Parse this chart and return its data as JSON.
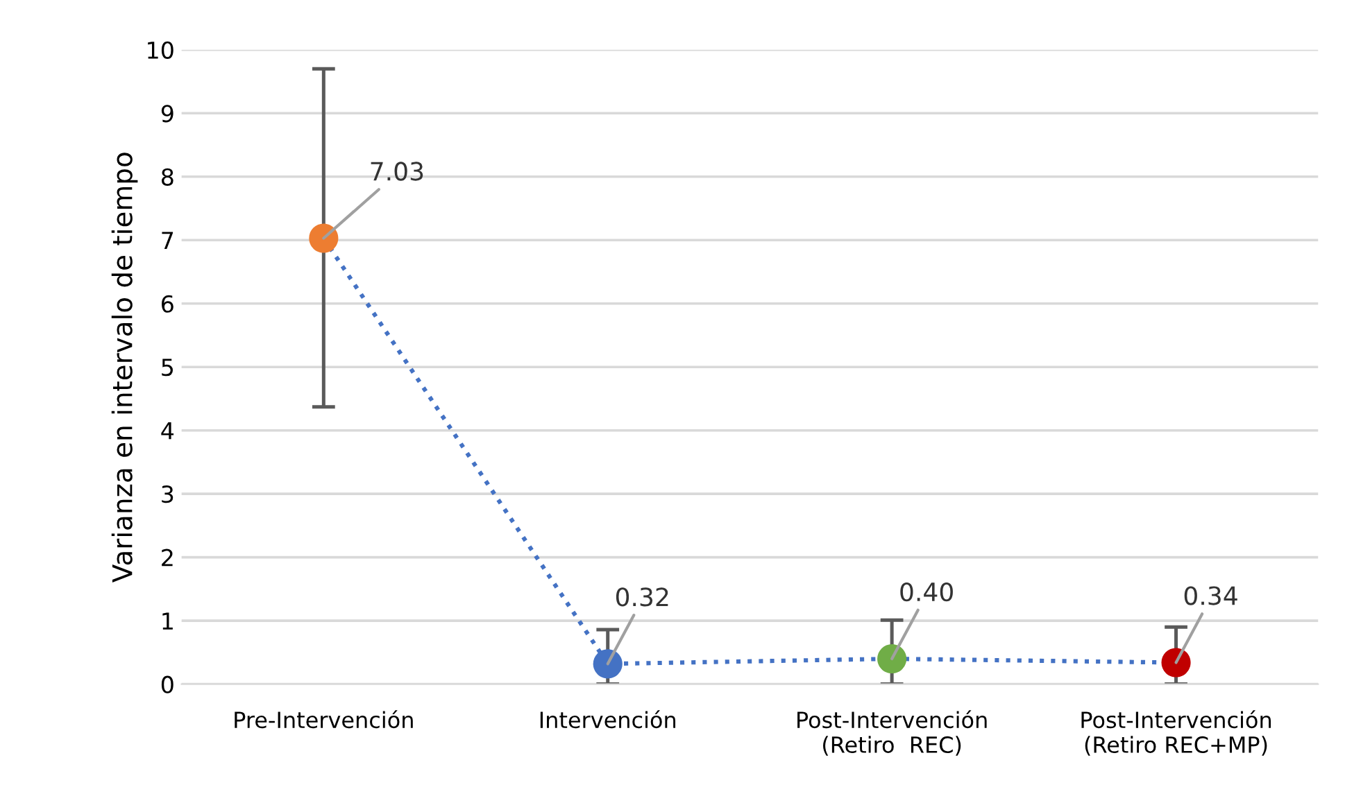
{
  "chart_data": {
    "type": "line",
    "ylabel": "Varianza en intervalo de tiempo",
    "categories": [
      "Pre-Intervención",
      "Intervención",
      "Post-Intervención\n(Retiro  REC)",
      "Post-Intervención\n(Retiro REC+MP)"
    ],
    "values": [
      7.03,
      0.32,
      0.4,
      0.34
    ],
    "color": "#4472c4",
    "colors": [
      "#ed7d31",
      "#4472c4",
      "#70ad47",
      "#c00000"
    ],
    "errors": [
      [
        4.37,
        9.7
      ],
      [
        0,
        0.86
      ],
      [
        0,
        1.01
      ],
      [
        0,
        0.9
      ]
    ],
    "ylim": [
      0,
      10
    ],
    "yticks": [
      0,
      1,
      2,
      3,
      4,
      5,
      6,
      7,
      8,
      9,
      10
    ],
    "value_labels": [
      "7.03",
      "0.32",
      "0.40",
      "0.34"
    ],
    "grid": "y",
    "marker": "circle",
    "line_style": "dotted"
  }
}
